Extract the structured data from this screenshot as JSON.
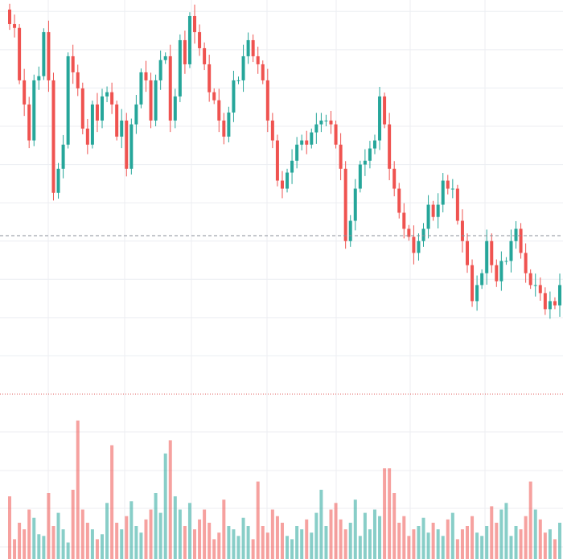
{
  "chart_data": {
    "type": "candlestick",
    "open": [
      200.5,
      196.7,
      195.7,
      182.0,
      175.7,
      166.3,
      182.0,
      183.1,
      194.6,
      182.0,
      152.6,
      158.9,
      165.2,
      188.3,
      184.1,
      179.9,
      169.4,
      165.2,
      175.7,
      171.5,
      177.8,
      178.9,
      175.7,
      167.3,
      171.5,
      158.9,
      170.5,
      175.7,
      184.1,
      182.0,
      171.5,
      182.0,
      187.3,
      188.3,
      171.5,
      177.8,
      192.5,
      186.2,
      198.8,
      194.6,
      190.4,
      186.2,
      178.9,
      176.8,
      171.5,
      167.3,
      173.6,
      182.0,
      182.0,
      188.3,
      192.5,
      188.3,
      186.2,
      182.0,
      171.5,
      166.3,
      155.8,
      153.7,
      157.9,
      161.0,
      165.2,
      166.3,
      165.2,
      168.4,
      170.5,
      171.5,
      171.5,
      170.5,
      165.2,
      158.9,
      140.0,
      145.3,
      153.7,
      160.0,
      161.0,
      164.2,
      166.3,
      177.8,
      170.5,
      158.9,
      153.7,
      147.4,
      143.2,
      141.1,
      136.9,
      140.0,
      143.2,
      149.5,
      146.3,
      149.5,
      155.8,
      153.7,
      153.7,
      145.3,
      140.0,
      133.7,
      124.3,
      128.5,
      131.6,
      140.0,
      133.7,
      129.5,
      134.8,
      134.8,
      140.0,
      143.2,
      136.9,
      131.6,
      128.5,
      128.5,
      126.4,
      122.2,
      124.3,
      123.2
    ],
    "high": [
      202.0,
      199.2,
      196.7,
      185.0,
      177.7,
      183.5,
      185.6,
      195.6,
      197.6,
      184.0,
      160.4,
      167.7,
      189.3,
      191.3,
      186.1,
      181.4,
      171.9,
      176.7,
      178.7,
      179.8,
      180.4,
      181.4,
      176.7,
      174.5,
      173.5,
      172.0,
      178.2,
      185.1,
      187.1,
      184.0,
      183.5,
      189.8,
      189.3,
      191.3,
      179.8,
      194.0,
      195.0,
      199.8,
      201.8,
      196.6,
      191.9,
      188.7,
      179.9,
      179.8,
      173.5,
      175.1,
      184.5,
      183.0,
      191.3,
      194.5,
      194.0,
      190.8,
      187.2,
      185.0,
      173.5,
      167.8,
      158.3,
      158.9,
      164.0,
      167.2,
      167.8,
      168.8,
      169.4,
      173.5,
      173.5,
      173.0,
      174.0,
      171.5,
      168.2,
      160.9,
      146.8,
      156.2,
      161.0,
      164.0,
      166.2,
      167.8,
      180.3,
      178.8,
      173.5,
      160.9,
      155.2,
      149.9,
      144.2,
      144.1,
      142.0,
      144.7,
      152.0,
      150.5,
      152.5,
      157.8,
      157.3,
      156.2,
      154.7,
      148.3,
      142.0,
      135.2,
      131.0,
      132.6,
      143.0,
      142.0,
      135.2,
      137.3,
      135.8,
      143.0,
      145.2,
      144.7,
      139.4,
      132.6,
      131.5,
      130.5,
      127.9,
      126.8,
      125.3,
      131.5
    ],
    "low": [
      195.2,
      193.2,
      181.0,
      172.7,
      164.3,
      164.8,
      179.5,
      182.1,
      179.0,
      150.6,
      151.1,
      156.4,
      164.2,
      181.1,
      177.9,
      167.9,
      162.7,
      164.2,
      168.5,
      169.5,
      176.3,
      173.2,
      166.3,
      164.3,
      156.9,
      157.4,
      168.0,
      174.7,
      179.0,
      169.5,
      170.0,
      179.5,
      186.3,
      168.5,
      169.5,
      176.3,
      183.7,
      185.2,
      191.6,
      188.4,
      184.7,
      176.4,
      175.8,
      168.5,
      165.3,
      165.8,
      171.1,
      181.0,
      179.0,
      186.3,
      186.8,
      183.7,
      181.0,
      168.5,
      164.3,
      154.3,
      151.2,
      152.7,
      154.9,
      159.0,
      163.7,
      162.7,
      164.2,
      165.4,
      168.5,
      170.0,
      168.0,
      164.2,
      155.9,
      138.0,
      138.5,
      142.8,
      152.7,
      157.0,
      159.0,
      162.7,
      163.8,
      169.5,
      155.9,
      151.7,
      145.9,
      140.7,
      140.1,
      133.9,
      134.9,
      138.5,
      140.7,
      145.3,
      143.3,
      147.5,
      152.2,
      151.2,
      144.3,
      137.0,
      131.7,
      122.8,
      121.8,
      127.5,
      128.6,
      131.7,
      128.0,
      127.0,
      133.8,
      131.8,
      138.0,
      135.4,
      129.1,
      127.5,
      125.5,
      124.4,
      120.7,
      119.7,
      122.2,
      120.2
    ],
    "close": [
      196.7,
      195.7,
      182.0,
      175.7,
      166.3,
      182.0,
      183.1,
      194.6,
      182.0,
      152.6,
      158.9,
      165.2,
      188.3,
      184.1,
      179.9,
      169.4,
      165.2,
      175.7,
      171.5,
      177.8,
      178.9,
      175.7,
      167.3,
      171.5,
      158.9,
      170.5,
      175.7,
      184.1,
      182.0,
      171.5,
      182.0,
      187.3,
      188.3,
      171.5,
      177.8,
      192.5,
      186.2,
      198.8,
      194.6,
      190.4,
      186.2,
      178.9,
      176.8,
      171.5,
      167.3,
      173.6,
      182.0,
      182.0,
      188.3,
      192.5,
      188.3,
      186.2,
      182.0,
      171.5,
      166.3,
      155.8,
      153.7,
      157.9,
      161.0,
      165.2,
      166.3,
      165.2,
      168.4,
      170.5,
      171.5,
      171.5,
      170.5,
      165.2,
      158.9,
      140.0,
      145.3,
      153.7,
      160.0,
      161.0,
      164.2,
      166.3,
      177.8,
      170.5,
      158.9,
      153.7,
      147.4,
      143.2,
      141.1,
      136.9,
      140.0,
      143.2,
      149.5,
      146.3,
      149.5,
      155.8,
      153.7,
      153.7,
      145.3,
      140.0,
      133.7,
      124.3,
      128.5,
      131.6,
      140.0,
      133.7,
      129.5,
      134.8,
      134.8,
      140.0,
      143.2,
      136.9,
      131.6,
      128.5,
      128.5,
      126.4,
      122.2,
      124.3,
      123.2,
      128.5
    ],
    "volume": [
      38,
      12,
      22,
      18,
      30,
      25,
      15,
      14,
      40,
      20,
      28,
      18,
      10,
      42,
      84,
      30,
      22,
      18,
      12,
      15,
      34,
      69,
      22,
      18,
      26,
      35,
      20,
      16,
      24,
      30,
      40,
      28,
      64,
      72,
      38,
      30,
      20,
      34,
      18,
      24,
      30,
      22,
      12,
      16,
      36,
      20,
      18,
      14,
      25,
      20,
      12,
      47,
      20,
      16,
      30,
      26,
      22,
      14,
      12,
      20,
      18,
      24,
      16,
      28,
      42,
      20,
      30,
      34,
      24,
      18,
      22,
      36,
      14,
      28,
      18,
      30,
      26,
      55,
      55,
      40,
      22,
      26,
      14,
      18,
      20,
      25,
      16,
      22,
      18,
      14,
      24,
      28,
      12,
      18,
      20,
      26,
      16,
      14,
      20,
      32,
      22,
      30,
      34,
      14,
      20,
      18,
      26,
      47,
      30,
      24,
      16,
      18,
      12,
      22
    ],
    "up_color": "#26a69a",
    "down_color": "#ef5350",
    "ylim": [
      100,
      203
    ],
    "yticks": [
      110,
      120,
      130,
      140,
      150,
      160,
      170,
      180,
      190,
      200
    ],
    "volume_lim": [
      0,
      100
    ],
    "price_line": 141.4,
    "grid": true
  }
}
